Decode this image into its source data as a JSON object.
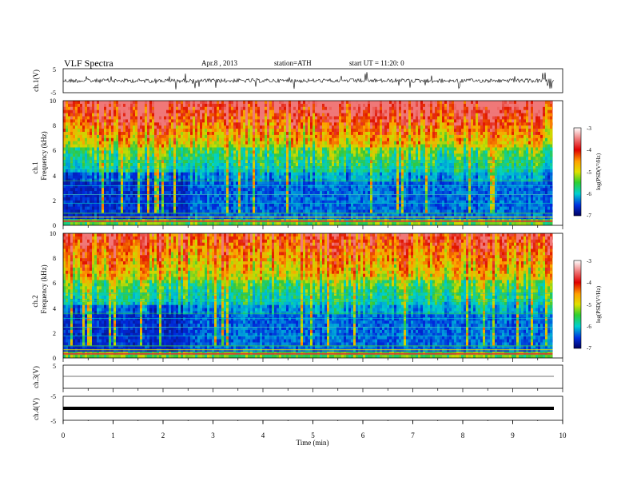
{
  "header": {
    "title": "VLF Spectra",
    "date": "Apr.8  , 2013",
    "station": "station=ATH",
    "start": "start UT =   11:20: 0"
  },
  "chart_data": {
    "type": "heatmap",
    "title": "VLF Spectra",
    "xlabel": "Time  (min)",
    "xlim": [
      0,
      10
    ],
    "x_ticks": [
      "0",
      "1",
      "2",
      "3",
      "4",
      "5",
      "6",
      "7",
      "8",
      "9",
      "10"
    ],
    "data_end_min": 9.8,
    "panels": {
      "ch1_wave": {
        "label": "ch.1(V)",
        "ylim": [
          -5,
          5
        ],
        "y_ticks": [
          "5",
          "-5"
        ]
      },
      "ch1_spec": {
        "label_top": "ch.1",
        "label": "Frequency  (kHz)",
        "ylim": [
          0,
          10
        ],
        "y_ticks": [
          "0",
          "2",
          "4",
          "6",
          "8",
          "10"
        ],
        "colorbar": {
          "label": "log(PSD(V²/Hz)",
          "range": [
            -7,
            -3
          ],
          "ticks": [
            "-3",
            "-4",
            "-5",
            "-6",
            "-7"
          ]
        }
      },
      "ch2_spec": {
        "label_top": "ch.2",
        "label": "Frequency  (kHz)",
        "ylim": [
          0,
          10
        ],
        "y_ticks": [
          "0",
          "2",
          "4",
          "6",
          "8",
          "10"
        ],
        "colorbar": {
          "label": "log(PSD(V²/Hz)",
          "range": [
            -7,
            -3
          ],
          "ticks": [
            "-3",
            "-4",
            "-5",
            "-6",
            "-7"
          ]
        }
      },
      "ch3_wave": {
        "label": "ch.3(V)",
        "ylim": [
          -5,
          5
        ],
        "y_ticks": [
          "5"
        ]
      },
      "ch4_wave": {
        "label": "ch.4(V)",
        "ylim": [
          -5,
          5
        ],
        "y_ticks": [
          "-5",
          "-5"
        ]
      }
    }
  }
}
